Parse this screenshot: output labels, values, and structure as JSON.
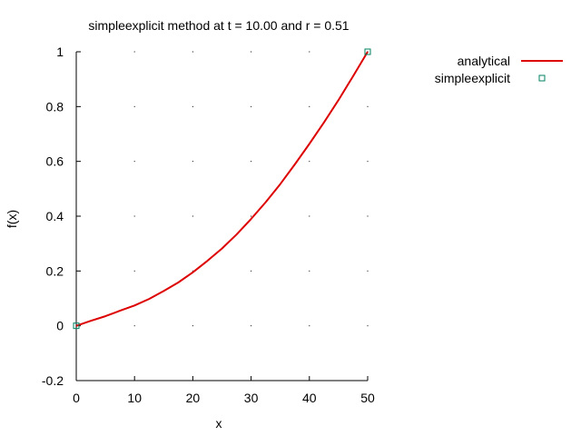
{
  "chart_data": {
    "type": "line",
    "title": "simpleexplicit method at t = 10.00 and r = 0.51",
    "xlabel": "x",
    "ylabel": "f(x)",
    "xlim": [
      0,
      50
    ],
    "ylim": [
      -0.2,
      1
    ],
    "x_ticks": [
      0,
      10,
      20,
      30,
      40,
      50
    ],
    "y_ticks": [
      -0.2,
      0,
      0.2,
      0.4,
      0.6,
      0.8,
      1
    ],
    "x_tick_labels": [
      "0",
      "10",
      "20",
      "30",
      "40",
      "50"
    ],
    "y_tick_labels": [
      "-0.2",
      "0",
      "0.2",
      "0.4",
      "0.6",
      "0.8",
      "1"
    ],
    "grid": "dots at major ticks",
    "legend_position": "top-right outside plot",
    "series": [
      {
        "name": "analytical",
        "style": "line",
        "color": "#dd0000",
        "x": [
          0,
          2.5,
          5,
          7.5,
          10,
          12.5,
          15,
          17.5,
          20,
          22.5,
          25,
          27.5,
          30,
          32.5,
          35,
          37.5,
          40,
          42.5,
          45,
          47.5,
          50
        ],
        "y": [
          0.0,
          0.018,
          0.035,
          0.055,
          0.074,
          0.098,
          0.127,
          0.158,
          0.195,
          0.237,
          0.282,
          0.333,
          0.39,
          0.451,
          0.517,
          0.589,
          0.664,
          0.742,
          0.824,
          0.911,
          1.0
        ]
      },
      {
        "name": "simpleexplicit",
        "style": "points",
        "marker": "open-square",
        "color": "#008060",
        "x": [
          0,
          50
        ],
        "y": [
          0,
          1
        ]
      }
    ]
  }
}
